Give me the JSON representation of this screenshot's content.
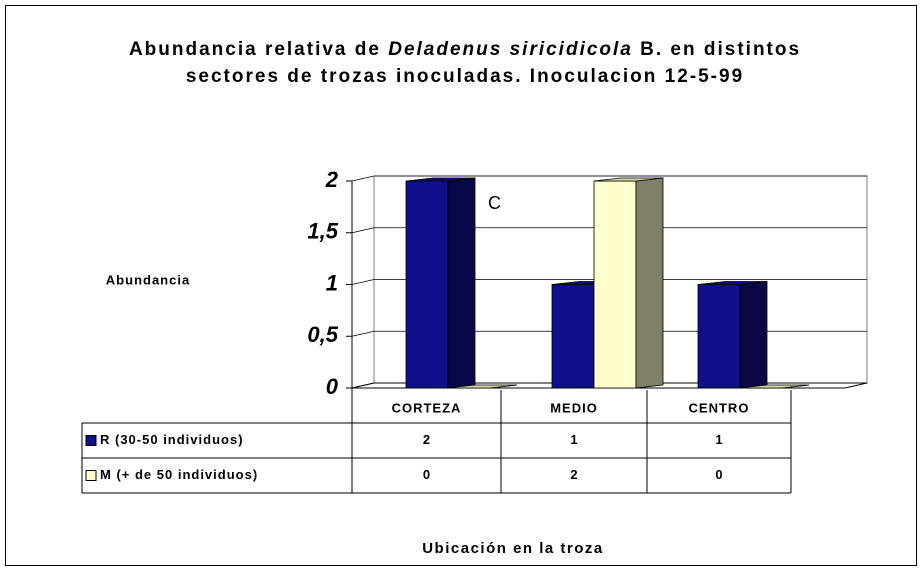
{
  "chart_data": {
    "type": "bar3d",
    "title": [
      {
        "text": "Abundancia relativa de "
      },
      {
        "text": "Deladenus siricidicola",
        "italic": true
      },
      {
        "text": " B. en distintos sectores de trozas inoculadas. Inoculacion 12-5-99"
      }
    ],
    "y_label": "Abundancia",
    "x_label": "Ubicación en la troza",
    "annotation": "C",
    "categories": [
      "CORTEZA",
      "MEDIO",
      "CENTRO"
    ],
    "series": [
      {
        "name": "R (30-50 individuos)",
        "color": "#10108c",
        "values": [
          2,
          1,
          1
        ]
      },
      {
        "name": "M (+ de 50 individuos)",
        "color": "#ffffcc",
        "values": [
          0,
          2,
          0
        ]
      }
    ],
    "ylim": [
      0,
      2
    ],
    "yticks": [
      0,
      {
        "value": 0.5,
        "label": "0,5"
      },
      1,
      {
        "value": 1.5,
        "label": "1,5"
      },
      2
    ],
    "grid": true
  }
}
